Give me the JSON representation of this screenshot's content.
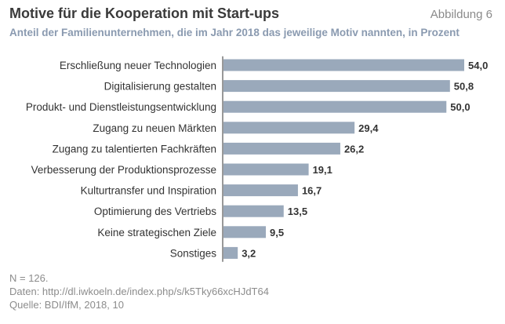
{
  "header": {
    "title": "Motive für die Kooperation mit Start-ups",
    "figure_number": "Abbildung 6",
    "subtitle": "Anteil der Familienunternehmen, die im Jahr 2018 das jeweilige Motiv nannten, in Prozent"
  },
  "footer": {
    "sample": "N = 126.",
    "data_source": "Daten: http://dl.iwkoeln.de/index.php/s/k5Tky66xcHJdT64",
    "source": "Quelle: BDI/IfM, 2018, 10"
  },
  "colors": {
    "bar": "#9aa9bb",
    "axis": "#333333",
    "label": "#333333",
    "value": "#333333"
  },
  "chart_data": {
    "type": "bar",
    "orientation": "horizontal",
    "title": "Motive für die Kooperation mit Start-ups",
    "xlabel": "",
    "ylabel": "",
    "xlim": [
      0,
      54
    ],
    "grid": false,
    "categories": [
      "Erschließung neuer Technologien",
      "Digitalisierung gestalten",
      "Produkt- und Dienstleistungsentwicklung",
      "Zugang zu neuen Märkten",
      "Zugang zu talentierten Fachkräften",
      "Verbesserung der Produktionsprozesse",
      "Kulturtransfer und Inspiration",
      "Optimierung des Vertriebs",
      "Keine strategischen Ziele",
      "Sonstiges"
    ],
    "values": [
      54.0,
      50.8,
      50.0,
      29.4,
      26.2,
      19.1,
      16.7,
      13.5,
      9.5,
      3.2
    ],
    "value_labels": [
      "54,0",
      "50,8",
      "50,0",
      "29,4",
      "26,2",
      "19,1",
      "16,7",
      "13,5",
      "9,5",
      "3,2"
    ]
  }
}
